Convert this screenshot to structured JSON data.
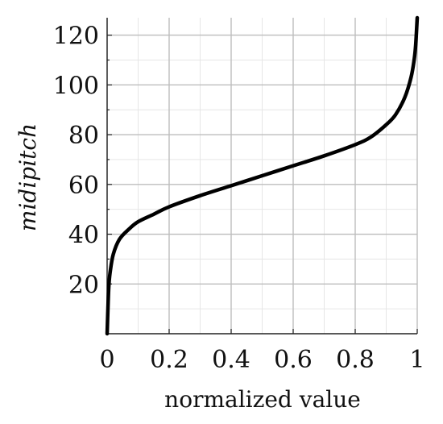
{
  "chart_data": {
    "type": "line",
    "title": "",
    "xlabel": "normalized value",
    "ylabel": "midipitch",
    "xlim": [
      0,
      1
    ],
    "ylim": [
      0,
      127
    ],
    "x_ticks": [
      0,
      0.2,
      0.4,
      0.6,
      0.8,
      1
    ],
    "x_tick_labels": [
      "0",
      "0.2",
      "0.4",
      "0.6",
      "0.8",
      "1"
    ],
    "y_ticks": [
      20,
      40,
      60,
      80,
      100,
      120
    ],
    "y_tick_labels": [
      "20",
      "40",
      "60",
      "80",
      "100",
      "120"
    ],
    "grid": true,
    "minor_grid": true,
    "series": [
      {
        "color": "#000000",
        "x": [
          0,
          0.005,
          0.01,
          0.02,
          0.04,
          0.07,
          0.1,
          0.15,
          0.2,
          0.3,
          0.4,
          0.5,
          0.6,
          0.7,
          0.8,
          0.85,
          0.9,
          0.93,
          0.96,
          0.98,
          0.99,
          0.995,
          1
        ],
        "y": [
          0,
          18,
          25,
          32,
          38,
          42,
          45,
          48,
          51,
          55.5,
          59.5,
          63.5,
          67.5,
          71.5,
          76,
          79,
          84,
          88,
          95,
          103,
          110,
          116,
          127
        ]
      }
    ]
  }
}
